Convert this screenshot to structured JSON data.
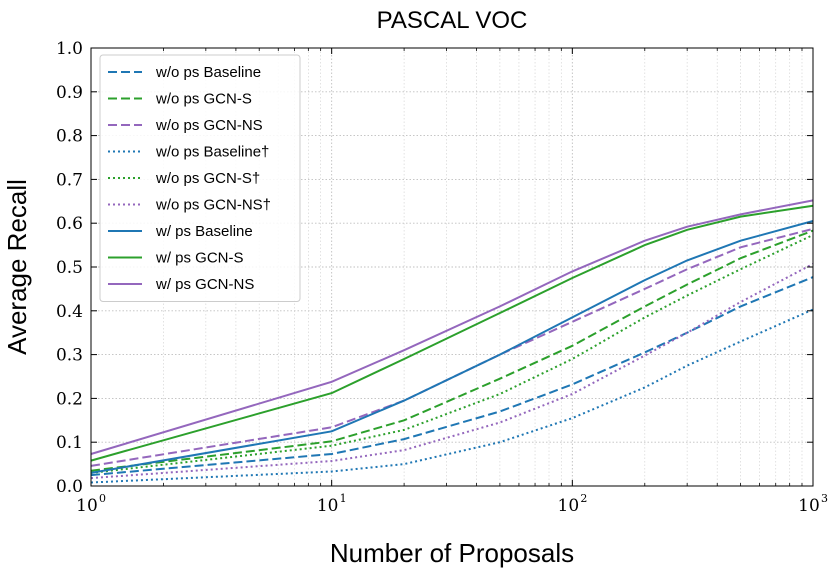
{
  "chart_data": {
    "type": "line",
    "title": "PASCAL VOC",
    "xlabel": "Number of Proposals",
    "ylabel": "Average Recall",
    "x_scale": "log",
    "xlim": [
      1,
      1000
    ],
    "ylim": [
      0,
      1.0
    ],
    "x_ticks": [
      {
        "base": "10",
        "exp": "0",
        "value": 1
      },
      {
        "base": "10",
        "exp": "1",
        "value": 10
      },
      {
        "base": "10",
        "exp": "2",
        "value": 100
      },
      {
        "base": "10",
        "exp": "3",
        "value": 1000
      }
    ],
    "y_ticks": [
      "0.0",
      "0.1",
      "0.2",
      "0.3",
      "0.4",
      "0.5",
      "0.6",
      "0.7",
      "0.8",
      "0.9",
      "1.0"
    ],
    "grid": true,
    "legend_position": "top-left",
    "x": [
      1,
      10,
      20,
      50,
      100,
      200,
      300,
      500,
      1000
    ],
    "series": [
      {
        "name": "w/o ps Baseline",
        "color": "#1f77b4",
        "style": "dashed",
        "values": [
          0.025,
          0.073,
          0.107,
          0.17,
          0.232,
          0.305,
          0.35,
          0.41,
          0.477
        ]
      },
      {
        "name": "w/o ps GCN-S",
        "color": "#2ca02c",
        "style": "dashed",
        "values": [
          0.035,
          0.102,
          0.15,
          0.245,
          0.32,
          0.41,
          0.46,
          0.52,
          0.583
        ]
      },
      {
        "name": "w/o ps GCN-NS",
        "color": "#9467bd",
        "style": "dashed",
        "values": [
          0.046,
          0.134,
          0.195,
          0.3,
          0.375,
          0.45,
          0.495,
          0.545,
          0.587
        ]
      },
      {
        "name": "w/o ps Baseline†",
        "color": "#1f77b4",
        "style": "dotted",
        "values": [
          0.008,
          0.033,
          0.05,
          0.1,
          0.155,
          0.225,
          0.275,
          0.33,
          0.403
        ]
      },
      {
        "name": "w/o ps GCN-S†",
        "color": "#2ca02c",
        "style": "dotted",
        "values": [
          0.03,
          0.092,
          0.128,
          0.21,
          0.29,
          0.385,
          0.435,
          0.495,
          0.573
        ]
      },
      {
        "name": "w/o ps GCN-NS†",
        "color": "#9467bd",
        "style": "dotted",
        "values": [
          0.018,
          0.057,
          0.082,
          0.145,
          0.21,
          0.298,
          0.35,
          0.42,
          0.507
        ]
      },
      {
        "name": "w/ ps Baseline",
        "color": "#1f77b4",
        "style": "solid",
        "values": [
          0.03,
          0.125,
          0.195,
          0.3,
          0.385,
          0.47,
          0.515,
          0.56,
          0.605
        ]
      },
      {
        "name": "w/ ps GCN-S",
        "color": "#2ca02c",
        "style": "solid",
        "values": [
          0.058,
          0.212,
          0.29,
          0.395,
          0.475,
          0.55,
          0.585,
          0.615,
          0.64
        ]
      },
      {
        "name": "w/ ps GCN-NS",
        "color": "#9467bd",
        "style": "solid",
        "values": [
          0.073,
          0.238,
          0.31,
          0.41,
          0.49,
          0.56,
          0.592,
          0.62,
          0.652
        ]
      }
    ]
  }
}
